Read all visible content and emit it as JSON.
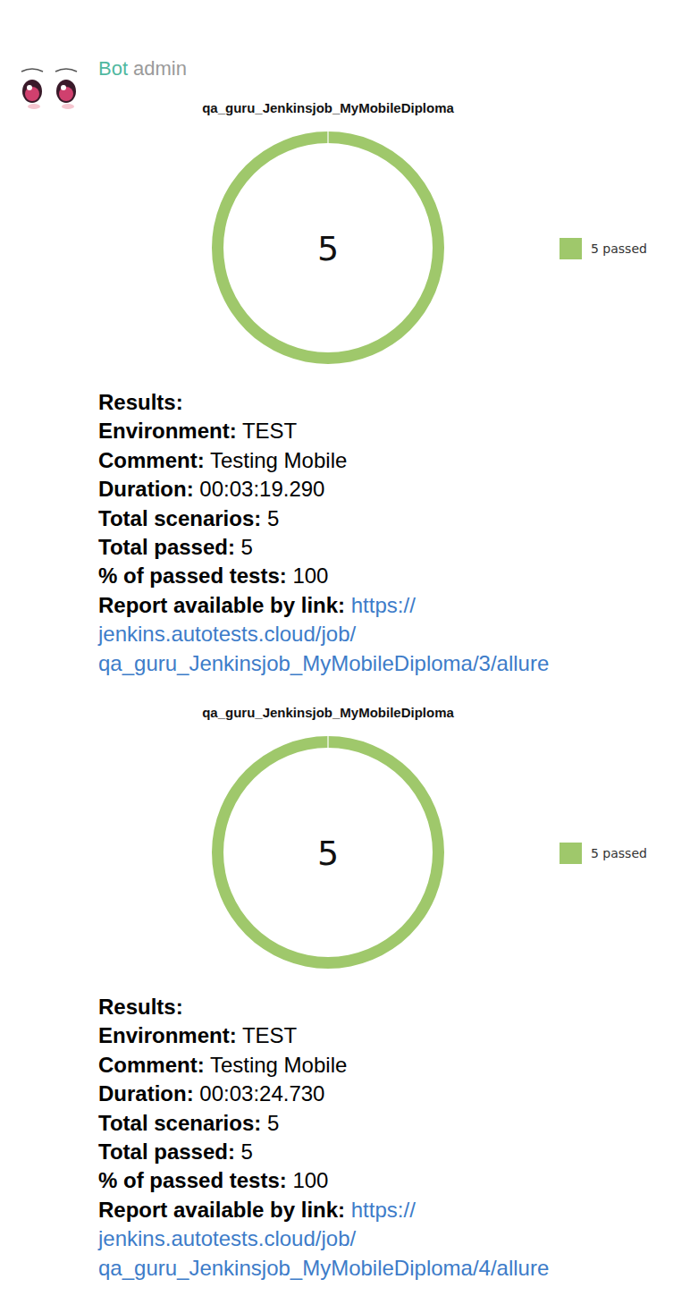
{
  "sender": {
    "name": "Bot",
    "role": "admin"
  },
  "chart_data": [
    {
      "type": "pie",
      "title": "qa_guru_Jenkinsjob_MyMobileDiploma",
      "categories": [
        "5 passed"
      ],
      "values": [
        5
      ],
      "colors": [
        "#9fc86b"
      ],
      "total": 5,
      "legend": "right"
    },
    {
      "type": "pie",
      "title": "qa_guru_Jenkinsjob_MyMobileDiploma",
      "categories": [
        "5 passed"
      ],
      "values": [
        5
      ],
      "colors": [
        "#9fc86b"
      ],
      "total": 5,
      "legend": "right"
    }
  ],
  "messages": [
    {
      "heading": "Results:",
      "fields": [
        {
          "label": "Environment:",
          "value": "TEST"
        },
        {
          "label": "Comment:",
          "value": "Testing Mobile"
        },
        {
          "label": "Duration:",
          "value": "00:03:19.290"
        },
        {
          "label": "Total scenarios:",
          "value": 5
        },
        {
          "label": "Total passed:",
          "value": 5
        },
        {
          "label": "% of passed tests:",
          "value": 100
        }
      ],
      "link": {
        "label": "Report available by link:",
        "url": "https://jenkins.autotests.cloud/job/qa_guru_Jenkinsjob_MyMobileDiploma/3/allure"
      }
    },
    {
      "heading": "Results:",
      "fields": [
        {
          "label": "Environment:",
          "value": "TEST"
        },
        {
          "label": "Comment:",
          "value": "Testing Mobile"
        },
        {
          "label": "Duration:",
          "value": "00:03:24.730"
        },
        {
          "label": "Total scenarios:",
          "value": 5
        },
        {
          "label": "Total passed:",
          "value": 5
        },
        {
          "label": "% of passed tests:",
          "value": 100
        }
      ],
      "link": {
        "label": "Report available by link:",
        "url": "https://jenkins.autotests.cloud/job/qa_guru_Jenkinsjob_MyMobileDiploma/4/allure"
      }
    }
  ]
}
